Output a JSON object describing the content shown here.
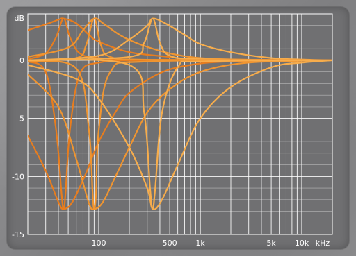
{
  "chart_data": {
    "type": "line",
    "title": "",
    "xlabel": "",
    "ylabel": "",
    "x_scale": "log",
    "xlim": [
      20,
      20000
    ],
    "ylim": [
      -15,
      4
    ],
    "y_ticks": [
      {
        "value": 0,
        "label": "0"
      },
      {
        "value": -5,
        "label": "-5"
      },
      {
        "value": -10,
        "label": "-10"
      },
      {
        "value": -15,
        "label": "-15"
      }
    ],
    "y_unit_label": "dB",
    "x_ticks": [
      {
        "value": 100,
        "label": "100"
      },
      {
        "value": 500,
        "label": "500"
      },
      {
        "value": 1000,
        "label": "1k"
      },
      {
        "value": 5000,
        "label": "5k"
      },
      {
        "value": 10000,
        "label": "10k"
      }
    ],
    "x_unit_label": "kHz",
    "grid": true,
    "colors": {
      "curve_dark": "#e87d1e",
      "curve_mid": "#f09530",
      "curve_light": "#f7ad4c",
      "grid": "#ffffff",
      "panel": "#707072"
    },
    "series": [
      {
        "points": [
          [
            20,
            2.6
          ],
          [
            30,
            3.1
          ],
          [
            40,
            3.5
          ],
          [
            45,
            3.6
          ],
          [
            60,
            3.2
          ],
          [
            80,
            2.2
          ],
          [
            100,
            1.6
          ],
          [
            200,
            0.7
          ],
          [
            500,
            0.3
          ],
          [
            1000,
            0.1
          ],
          [
            20000,
            0
          ]
        ]
      },
      {
        "points": [
          [
            20,
            0.1
          ],
          [
            30,
            0.6
          ],
          [
            38,
            2.0
          ],
          [
            45,
            3.6
          ],
          [
            52,
            2.0
          ],
          [
            65,
            0.6
          ],
          [
            100,
            0.2
          ],
          [
            300,
            0.05
          ],
          [
            20000,
            0
          ]
        ]
      },
      {
        "points": [
          [
            20,
            0.3
          ],
          [
            50,
            1.1
          ],
          [
            70,
            2.6
          ],
          [
            90,
            3.6
          ],
          [
            110,
            3.2
          ],
          [
            160,
            2.2
          ],
          [
            250,
            1.4
          ],
          [
            500,
            0.6
          ],
          [
            1000,
            0.2
          ],
          [
            3000,
            0.05
          ],
          [
            20000,
            0
          ]
        ]
      },
      {
        "points": [
          [
            20,
            0
          ],
          [
            60,
            0.2
          ],
          [
            75,
            1.3
          ],
          [
            90,
            3.6
          ],
          [
            105,
            1.3
          ],
          [
            130,
            0.3
          ],
          [
            300,
            0.05
          ],
          [
            20000,
            0
          ]
        ]
      },
      {
        "points": [
          [
            20,
            0
          ],
          [
            100,
            0.4
          ],
          [
            200,
            1.8
          ],
          [
            300,
            3.0
          ],
          [
            340,
            3.6
          ],
          [
            450,
            3.2
          ],
          [
            700,
            2.2
          ],
          [
            1000,
            1.4
          ],
          [
            2000,
            0.7
          ],
          [
            5000,
            0.2
          ],
          [
            12000,
            0.05
          ],
          [
            20000,
            0
          ]
        ]
      },
      {
        "points": [
          [
            20,
            0
          ],
          [
            200,
            0.3
          ],
          [
            280,
            1.5
          ],
          [
            340,
            3.6
          ],
          [
            400,
            1.5
          ],
          [
            500,
            0.4
          ],
          [
            1000,
            0.1
          ],
          [
            20000,
            0
          ]
        ]
      },
      {
        "points": [
          [
            20,
            -6.5
          ],
          [
            30,
            -9.5
          ],
          [
            40,
            -12.2
          ],
          [
            45,
            -12.8
          ],
          [
            55,
            -12.2
          ],
          [
            75,
            -9.7
          ],
          [
            100,
            -7.0
          ],
          [
            150,
            -4.3
          ],
          [
            200,
            -2.8
          ],
          [
            400,
            -1.1
          ],
          [
            800,
            -0.4
          ],
          [
            2000,
            -0.1
          ],
          [
            20000,
            0
          ]
        ]
      },
      {
        "points": [
          [
            20,
            -0.1
          ],
          [
            30,
            -1.0
          ],
          [
            38,
            -6.0
          ],
          [
            43,
            -11.5
          ],
          [
            45,
            -12.8
          ],
          [
            47,
            -11.5
          ],
          [
            52,
            -6.0
          ],
          [
            65,
            -1.2
          ],
          [
            100,
            -0.2
          ],
          [
            300,
            0
          ],
          [
            20000,
            0
          ]
        ]
      },
      {
        "points": [
          [
            20,
            -1.2
          ],
          [
            40,
            -4.0
          ],
          [
            60,
            -8.5
          ],
          [
            80,
            -12.3
          ],
          [
            90,
            -12.8
          ],
          [
            110,
            -12.2
          ],
          [
            150,
            -9.8
          ],
          [
            200,
            -7.5
          ],
          [
            300,
            -4.5
          ],
          [
            500,
            -2.5
          ],
          [
            1000,
            -1.0
          ],
          [
            3000,
            -0.2
          ],
          [
            20000,
            0
          ]
        ]
      },
      {
        "points": [
          [
            20,
            -0.1
          ],
          [
            60,
            -0.7
          ],
          [
            80,
            -6.0
          ],
          [
            87,
            -11.5
          ],
          [
            90,
            -12.8
          ],
          [
            94,
            -11.5
          ],
          [
            100,
            -6.0
          ],
          [
            130,
            -1.0
          ],
          [
            300,
            -0.1
          ],
          [
            20000,
            0
          ]
        ]
      },
      {
        "points": [
          [
            20,
            -0.4
          ],
          [
            60,
            -1.6
          ],
          [
            100,
            -3.3
          ],
          [
            200,
            -7.5
          ],
          [
            300,
            -11.0
          ],
          [
            340,
            -12.8
          ],
          [
            420,
            -12.0
          ],
          [
            600,
            -9.0
          ],
          [
            1000,
            -5.0
          ],
          [
            2000,
            -2.3
          ],
          [
            5000,
            -0.6
          ],
          [
            10000,
            -0.2
          ],
          [
            20000,
            0
          ]
        ]
      },
      {
        "points": [
          [
            20,
            0
          ],
          [
            200,
            -0.4
          ],
          [
            280,
            -4.5
          ],
          [
            320,
            -11.0
          ],
          [
            340,
            -12.8
          ],
          [
            360,
            -11.0
          ],
          [
            420,
            -4.5
          ],
          [
            600,
            -0.6
          ],
          [
            1000,
            -0.1
          ],
          [
            20000,
            0
          ]
        ]
      }
    ]
  }
}
